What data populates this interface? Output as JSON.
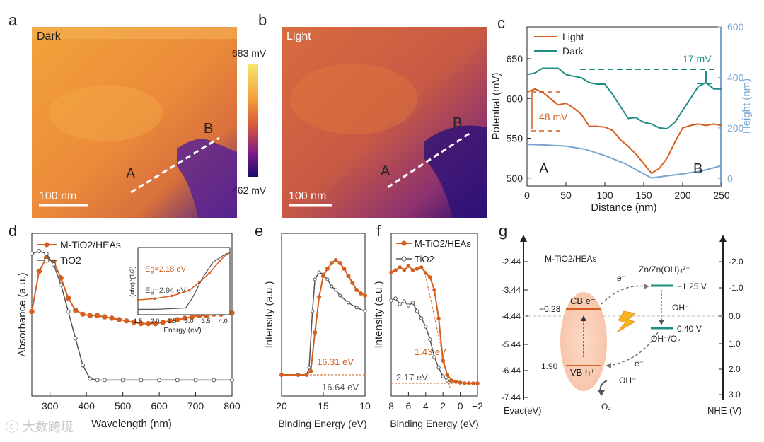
{
  "panel_letters": {
    "a": "a",
    "b": "b",
    "c": "c",
    "d": "d",
    "e": "e",
    "f": "f",
    "g": "g"
  },
  "colors": {
    "orange": "#d45f1f",
    "teal": "#1f8f85",
    "blue": "#7aa5cf",
    "grey": "#555555"
  },
  "panel_a": {
    "title": "Dark",
    "A": "A",
    "B": "B",
    "scalebar": "100 nm"
  },
  "panel_b": {
    "title": "Light",
    "A": "A",
    "B": "B",
    "scalebar": "100 nm"
  },
  "colorbar": {
    "max": "683 mV",
    "min": "462 mV"
  },
  "panel_c": {
    "legend": [
      "Light",
      "Dark"
    ],
    "ylabel": "Potential (mV)",
    "ylabel_right": "Height (nm)",
    "xlabel": "Distance (nm)",
    "yticks": [
      "500",
      "550",
      "600",
      "650"
    ],
    "yticks_right": [
      "0",
      "200",
      "400",
      "600"
    ],
    "xticks": [
      "0",
      "50",
      "100",
      "150",
      "200",
      "250"
    ],
    "ann1": "17 mV",
    "ann2": "48 mV",
    "A": "A",
    "B": "B"
  },
  "panel_d": {
    "legend": [
      "M-TiO2/HEAs",
      "TiO2"
    ],
    "ylabel": "Absorbance (a.u.)",
    "xlabel": "Wavelength (nm)",
    "xticks": [
      "300",
      "400",
      "500",
      "600",
      "700",
      "800"
    ],
    "inset": {
      "ylabel": "(αhν)^(1/2)",
      "xlabel": "Energy (eV)",
      "xticks": [
        "1.5",
        "2.0",
        "2.5",
        "3.0",
        "3.5",
        "4.0"
      ],
      "eg1": "Eg=2.18 eV",
      "eg2": "Eg=2.94 eV"
    }
  },
  "panel_e": {
    "ylabel": "Intensity (a.u.)",
    "xlabel": "Binding Energy (eV)",
    "xticks": [
      "20",
      "15",
      "10"
    ],
    "ann1": "16.31 eV",
    "ann2": "16.64 eV"
  },
  "panel_f": {
    "legend": [
      "M-TiO2/HEAs",
      "TiO2"
    ],
    "ylabel": "Intensity (a.u.)",
    "xlabel": "Binding Energy (eV)",
    "xticks": [
      "8",
      "6",
      "4",
      "2",
      "0",
      "−2"
    ],
    "ann1": "1.43 eV",
    "ann2": "2.17 eV"
  },
  "panel_g": {
    "title": "M-TiO2/HEAs",
    "left_ticks": [
      "-2.44",
      "-3.44",
      "-4.44",
      "-5.44",
      "-6.44",
      "-7.44"
    ],
    "right_ticks": [
      "-2.0",
      "-1.0",
      "0.0",
      "1.0",
      "2.0",
      "3.0"
    ],
    "left_axis": "Evac(eV)",
    "right_axis": "NHE (V)",
    "cb": "CB e⁻",
    "vb": "VB h⁺",
    "cb_val": "−0.28",
    "vb_val": "1.90",
    "zn": "Zn/Zn(OH)₄²⁻",
    "zn_val": "−1.25 V",
    "oh_val": "0.40 V",
    "oh_o2": "OH⁻/O₂",
    "oh": "OH⁻",
    "oh2": "OH⁻",
    "o2": "O₂",
    "e1": "e⁻",
    "e2": "e⁻"
  },
  "chart_data": [
    {
      "type": "line",
      "title": "",
      "xlabel": "Distance (nm)",
      "ylabel": "Potential (mV)",
      "xlim": [
        0,
        250
      ],
      "ylim": [
        490,
        690
      ],
      "series": [
        {
          "name": "Light",
          "x": [
            0,
            10,
            20,
            30,
            40,
            50,
            60,
            70,
            80,
            90,
            100,
            110,
            120,
            130,
            140,
            150,
            160,
            170,
            180,
            190,
            200,
            210,
            220,
            230,
            240,
            250
          ],
          "y": [
            608,
            612,
            608,
            600,
            592,
            594,
            588,
            580,
            565,
            565,
            564,
            560,
            548,
            540,
            530,
            518,
            506,
            512,
            525,
            545,
            563,
            566,
            568,
            566,
            568,
            566
          ]
        },
        {
          "name": "Dark",
          "x": [
            0,
            10,
            20,
            30,
            40,
            50,
            60,
            70,
            80,
            90,
            100,
            110,
            120,
            130,
            140,
            150,
            160,
            170,
            180,
            190,
            200,
            210,
            220,
            230,
            240,
            250
          ],
          "y": [
            630,
            632,
            638,
            638,
            638,
            630,
            628,
            626,
            620,
            618,
            618,
            605,
            590,
            575,
            576,
            570,
            568,
            563,
            562,
            570,
            585,
            600,
            615,
            620,
            612,
            612
          ]
        },
        {
          "name": "",
          "x": [
            0,
            25,
            50,
            75,
            100,
            125,
            150,
            160,
            175,
            200,
            225,
            250
          ],
          "y": [
            135,
            132,
            128,
            115,
            90,
            60,
            18,
            2,
            8,
            18,
            30,
            50
          ]
        }
      ]
    },
    {
      "type": "line",
      "title": "",
      "xlabel": "Wavelength (nm)",
      "ylabel": "Absorbance (a.u.)",
      "xlim": [
        250,
        800
      ],
      "series": [
        {
          "name": "M-TiO2/HEAs",
          "x": [
            250,
            270,
            290,
            310,
            330,
            350,
            370,
            390,
            410,
            430,
            450,
            470,
            490,
            510,
            530,
            550,
            570,
            590,
            610,
            630,
            650,
            670,
            690,
            710,
            730,
            750,
            770,
            790,
            800
          ],
          "y": [
            0.55,
            0.85,
            0.95,
            0.92,
            0.8,
            0.65,
            0.56,
            0.53,
            0.52,
            0.52,
            0.51,
            0.5,
            0.49,
            0.48,
            0.47,
            0.46,
            0.46,
            0.46,
            0.47,
            0.48,
            0.49,
            0.5,
            0.51,
            0.52,
            0.52,
            0.53,
            0.53,
            0.54,
            0.54
          ]
        },
        {
          "name": "TiO2",
          "x": [
            250,
            270,
            290,
            310,
            330,
            350,
            370,
            390,
            410,
            430,
            450,
            500,
            550,
            600,
            650,
            700,
            750,
            800
          ],
          "y": [
            0.98,
            1.0,
            0.98,
            0.9,
            0.75,
            0.55,
            0.35,
            0.15,
            0.05,
            0.04,
            0.04,
            0.04,
            0.04,
            0.04,
            0.04,
            0.04,
            0.04,
            0.04
          ]
        }
      ]
    }
  ]
}
